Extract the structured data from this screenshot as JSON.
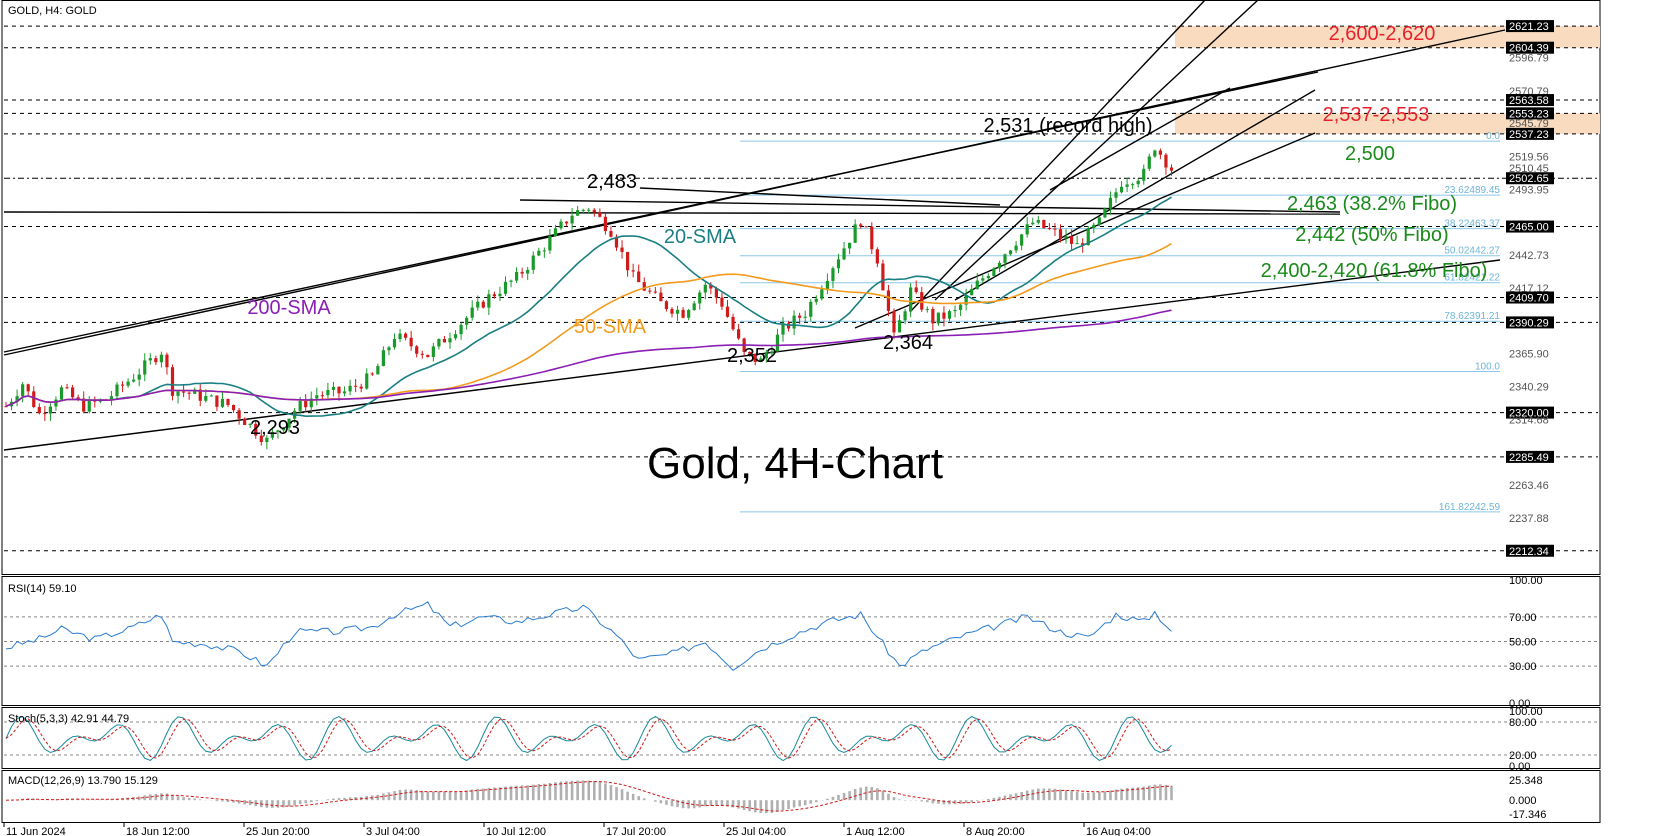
{
  "header": {
    "symbol_title": "GOLD, H4:  GOLD",
    "rsi_title": "RSI(14) 59.10",
    "stoch_title": "Stoch(5,3,3) 42.91 44.79",
    "macd_title": "MACD(12,26,9) 13.790 15.129"
  },
  "colors": {
    "sma20": "#1a7f83",
    "sma50": "#f39a1c",
    "sma200": "#8b1fb5",
    "bull": "#1a9a2a",
    "bear": "#d11b1b",
    "resistance_text": "#e8202a",
    "support_text": "#1a8a1a",
    "zone": "#f9dcc0",
    "fib_line": "#8cc8e8",
    "indicator_line": "#2a7dd1"
  },
  "chart_data": {
    "type": "candlestick",
    "title": "Gold, 4H-Chart",
    "symbol": "GOLD",
    "timeframe": "H4",
    "ylim": [
      2195,
      2640
    ],
    "x_tick_labels": [
      "11 Jun 2024",
      "18 Jun 12:00",
      "25 Jun 20:00",
      "3 Jul 04:00",
      "10 Jul 12:00",
      "17 Jul 20:00",
      "25 Jul 04:00",
      "1 Aug 12:00",
      "8 Aug 20:00",
      "16 Aug 04:00"
    ],
    "price_axis_labels": [
      "2621.23",
      "2604.39",
      "2596.79",
      "2570.79",
      "2563.58",
      "2553.23",
      "2545.79",
      "2537.23",
      "2519.56",
      "2510.45",
      "2502.65",
      "2493.95",
      "2465.00",
      "2442.73",
      "2417.12",
      "2409.70",
      "2390.29",
      "2365.90",
      "2340.29",
      "2320.00",
      "2314.68",
      "2285.49",
      "2263.46",
      "2237.88",
      "2212.34"
    ],
    "highlighted_price_labels": [
      "2621.23",
      "2604.39",
      "2563.58",
      "2553.23",
      "2537.23",
      "2502.65",
      "2465.00",
      "2409.70",
      "2390.29",
      "2320.00",
      "2285.49",
      "2212.34"
    ],
    "horizontal_levels": [
      2621.23,
      2604.39,
      2563.58,
      2553.23,
      2537.23,
      2502.65,
      2465.0,
      2409.7,
      2390.29,
      2320.0,
      2285.49,
      2212.34
    ],
    "fibonacci_levels": [
      {
        "label": "0.0",
        "price": 2531.6
      },
      {
        "label": "23.6",
        "price": 2489.45
      },
      {
        "label": "38.2",
        "price": 2463.37
      },
      {
        "label": "50.0",
        "price": 2442.27
      },
      {
        "label": "61.8",
        "price": 2421.22
      },
      {
        "label": "78.6",
        "price": 2391.21
      },
      {
        "label": "100.0",
        "price": 2352.0
      },
      {
        "label": "161.8",
        "price": 2242.59
      }
    ],
    "fib_texts": [
      "0.0",
      "23.62489.45",
      "38.22463.37",
      "50.02442.27",
      "61.82421.22",
      "78.62391.21",
      "100.0",
      "161.82242.59"
    ],
    "zones": [
      {
        "label": "2,600-2,620",
        "from": 2604.39,
        "to": 2621.23
      },
      {
        "label": "2,537-2,553",
        "from": 2537.23,
        "to": 2553.23
      }
    ],
    "annotations": {
      "high_2483": "2,483",
      "low_2352": "2,352",
      "low_2364": "2,364",
      "low_2293": "2,293",
      "record_high": "2,531 (record high)",
      "level_2500": "2,500",
      "fibo_382": "2,463 (38.2% Fibo)",
      "fibo_50": "2,442 (50% Fibo)",
      "fibo_618": "2,400-2,420 (61.8% Fibo)",
      "sma20_label": "20-SMA",
      "sma50_label": "50-SMA",
      "sma200_label": "200-SMA"
    },
    "price_path": [
      {
        "x": 0,
        "y": 2325
      },
      {
        "x": 3,
        "y": 2343
      },
      {
        "x": 6,
        "y": 2319
      },
      {
        "x": 10,
        "y": 2338
      },
      {
        "x": 14,
        "y": 2325
      },
      {
        "x": 18,
        "y": 2330
      },
      {
        "x": 24,
        "y": 2352
      },
      {
        "x": 28,
        "y": 2368
      },
      {
        "x": 30,
        "y": 2338
      },
      {
        "x": 34,
        "y": 2334
      },
      {
        "x": 40,
        "y": 2326
      },
      {
        "x": 44,
        "y": 2310
      },
      {
        "x": 47,
        "y": 2298
      },
      {
        "x": 52,
        "y": 2322
      },
      {
        "x": 56,
        "y": 2334
      },
      {
        "x": 61,
        "y": 2336
      },
      {
        "x": 66,
        "y": 2348
      },
      {
        "x": 70,
        "y": 2380
      },
      {
        "x": 76,
        "y": 2365
      },
      {
        "x": 82,
        "y": 2390
      },
      {
        "x": 87,
        "y": 2410
      },
      {
        "x": 92,
        "y": 2425
      },
      {
        "x": 97,
        "y": 2450
      },
      {
        "x": 102,
        "y": 2475
      },
      {
        "x": 105,
        "y": 2480
      },
      {
        "x": 109,
        "y": 2462
      },
      {
        "x": 113,
        "y": 2425
      },
      {
        "x": 118,
        "y": 2405
      },
      {
        "x": 122,
        "y": 2398
      },
      {
        "x": 126,
        "y": 2420
      },
      {
        "x": 129,
        "y": 2405
      },
      {
        "x": 133,
        "y": 2365
      },
      {
        "x": 136,
        "y": 2360
      },
      {
        "x": 140,
        "y": 2385
      },
      {
        "x": 144,
        "y": 2398
      },
      {
        "x": 149,
        "y": 2435
      },
      {
        "x": 154,
        "y": 2470
      },
      {
        "x": 157,
        "y": 2440
      },
      {
        "x": 160,
        "y": 2378
      },
      {
        "x": 163,
        "y": 2415
      },
      {
        "x": 167,
        "y": 2392
      },
      {
        "x": 171,
        "y": 2398
      },
      {
        "x": 175,
        "y": 2420
      },
      {
        "x": 180,
        "y": 2445
      },
      {
        "x": 185,
        "y": 2468
      },
      {
        "x": 189,
        "y": 2460
      },
      {
        "x": 193,
        "y": 2450
      },
      {
        "x": 197,
        "y": 2468
      },
      {
        "x": 201,
        "y": 2500
      },
      {
        "x": 205,
        "y": 2506
      },
      {
        "x": 207,
        "y": 2528
      },
      {
        "x": 210,
        "y": 2510
      }
    ],
    "rsi": {
      "ylim": [
        0,
        100
      ],
      "levels": [
        70,
        50,
        30
      ],
      "tick_labels": [
        "100.00",
        "70.00",
        "50.00",
        "30.00",
        "0.00"
      ],
      "path": [
        {
          "x": 0,
          "y": 45
        },
        {
          "x": 6,
          "y": 52
        },
        {
          "x": 10,
          "y": 60
        },
        {
          "x": 16,
          "y": 52
        },
        {
          "x": 22,
          "y": 60
        },
        {
          "x": 28,
          "y": 72
        },
        {
          "x": 30,
          "y": 50
        },
        {
          "x": 36,
          "y": 48
        },
        {
          "x": 42,
          "y": 42
        },
        {
          "x": 47,
          "y": 30
        },
        {
          "x": 52,
          "y": 58
        },
        {
          "x": 60,
          "y": 58
        },
        {
          "x": 66,
          "y": 62
        },
        {
          "x": 70,
          "y": 72
        },
        {
          "x": 76,
          "y": 80
        },
        {
          "x": 80,
          "y": 62
        },
        {
          "x": 86,
          "y": 70
        },
        {
          "x": 92,
          "y": 66
        },
        {
          "x": 98,
          "y": 72
        },
        {
          "x": 104,
          "y": 78
        },
        {
          "x": 110,
          "y": 55
        },
        {
          "x": 114,
          "y": 35
        },
        {
          "x": 120,
          "y": 40
        },
        {
          "x": 126,
          "y": 50
        },
        {
          "x": 131,
          "y": 29
        },
        {
          "x": 136,
          "y": 44
        },
        {
          "x": 142,
          "y": 56
        },
        {
          "x": 148,
          "y": 66
        },
        {
          "x": 154,
          "y": 72
        },
        {
          "x": 158,
          "y": 48
        },
        {
          "x": 161,
          "y": 30
        },
        {
          "x": 166,
          "y": 44
        },
        {
          "x": 172,
          "y": 54
        },
        {
          "x": 178,
          "y": 62
        },
        {
          "x": 184,
          "y": 70
        },
        {
          "x": 190,
          "y": 58
        },
        {
          "x": 195,
          "y": 53
        },
        {
          "x": 200,
          "y": 72
        },
        {
          "x": 205,
          "y": 66
        },
        {
          "x": 207,
          "y": 74
        },
        {
          "x": 210,
          "y": 59
        }
      ]
    },
    "stochastic": {
      "ylim": [
        0,
        100
      ],
      "levels": [
        80,
        20
      ],
      "tick_labels": [
        "100.00",
        "80.00",
        "20.00",
        "0.00"
      ],
      "k_period": 5,
      "d_period": 3,
      "slowing": 3,
      "last_k": 42.91,
      "last_d": 44.79
    },
    "macd": {
      "fast": 12,
      "slow": 26,
      "signal": 9,
      "ylim": [
        -25,
        33
      ],
      "tick_labels": [
        "25.348",
        "0.000",
        "-17.346"
      ],
      "last_macd": 13.79,
      "last_signal": 15.129
    }
  }
}
